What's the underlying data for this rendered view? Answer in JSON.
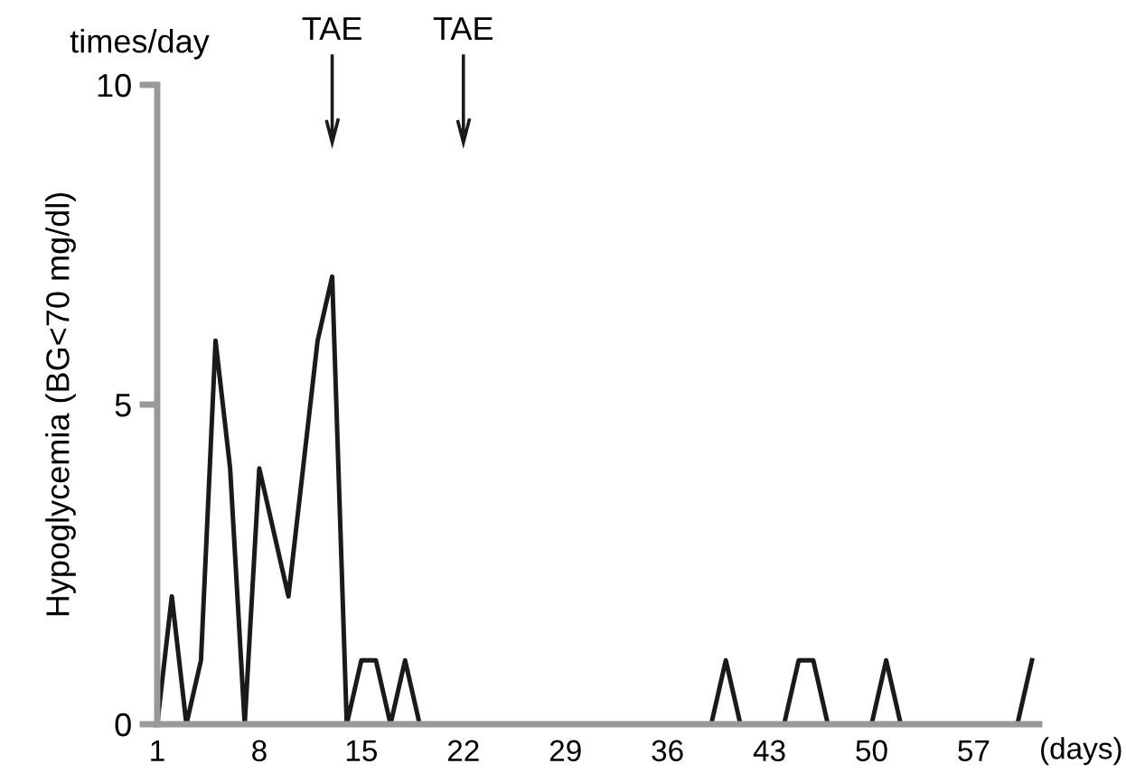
{
  "chart_data": {
    "type": "line",
    "ylabel": "Hypoglycemia (BG<70 mg/dl)",
    "xlabel": "(days)",
    "x": [
      1,
      2,
      3,
      4,
      5,
      6,
      7,
      8,
      10,
      12,
      13,
      14,
      15,
      16,
      17,
      18,
      19,
      39,
      40,
      41,
      44,
      45,
      46,
      47,
      50,
      51,
      52,
      60,
      61
    ],
    "series": [
      {
        "color": "#1a1a1a",
        "values": [
          0,
          2,
          0,
          1,
          6,
          4,
          0,
          4,
          2,
          6,
          7,
          0,
          1,
          1,
          0,
          1,
          0,
          0,
          1,
          0,
          0,
          1,
          1,
          0,
          0,
          1,
          0,
          0,
          1
        ]
      }
    ],
    "xlim": [
      1,
      61.5
    ],
    "xticks": [
      1,
      8,
      15,
      22,
      29,
      36,
      43,
      50,
      57
    ],
    "ylim": [
      0,
      10
    ],
    "yticks": [
      0,
      5,
      10
    ],
    "grid": false,
    "legend": false,
    "marker": "none",
    "line_style": "solid",
    "ref_lines": [
      {
        "axis": "x",
        "value": 13,
        "label": "TAE"
      },
      {
        "axis": "x",
        "value": 22,
        "label": "TAE"
      }
    ],
    "annotations": [
      "times/day"
    ]
  }
}
